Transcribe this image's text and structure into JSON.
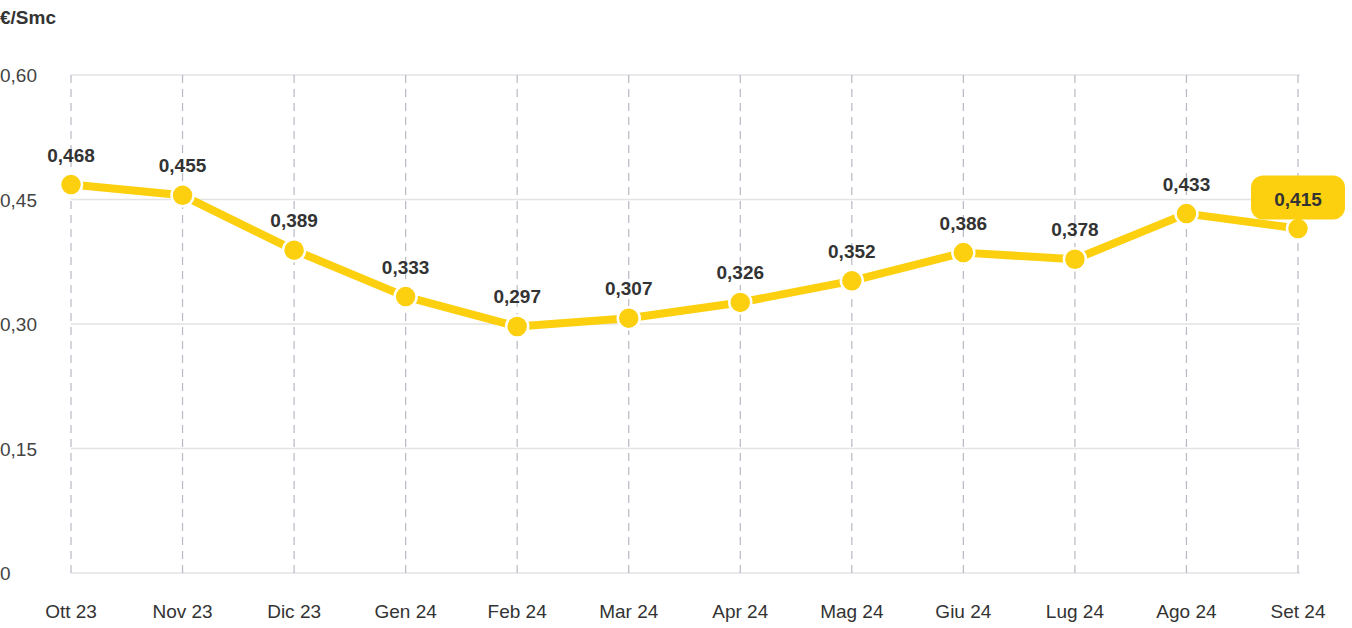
{
  "chart_data": {
    "type": "line",
    "y_label": "€/Smc",
    "categories": [
      "Ott 23",
      "Nov 23",
      "Dic 23",
      "Gen 24",
      "Feb 24",
      "Mar 24",
      "Apr 24",
      "Mag 24",
      "Giu 24",
      "Lug 24",
      "Ago 24",
      "Set 24"
    ],
    "values": [
      0.468,
      0.455,
      0.389,
      0.333,
      0.297,
      0.307,
      0.326,
      0.352,
      0.386,
      0.378,
      0.433,
      0.415
    ],
    "value_labels": [
      "0,468",
      "0,455",
      "0,389",
      "0,333",
      "0,297",
      "0,307",
      "0,326",
      "0,352",
      "0,386",
      "0,378",
      "0,433",
      "0,415"
    ],
    "color": "#fcd00f",
    "ylim": [
      0,
      0.6
    ],
    "yticks": [
      0,
      {
        "value": 0.15,
        "label": "0,15"
      },
      {
        "value": 0.3,
        "label": "0,30"
      },
      {
        "value": 0.45,
        "label": "0,45"
      },
      {
        "value": 0.6,
        "label": "0,60"
      }
    ],
    "grid": true,
    "data_labels": true,
    "marker": "circle"
  }
}
